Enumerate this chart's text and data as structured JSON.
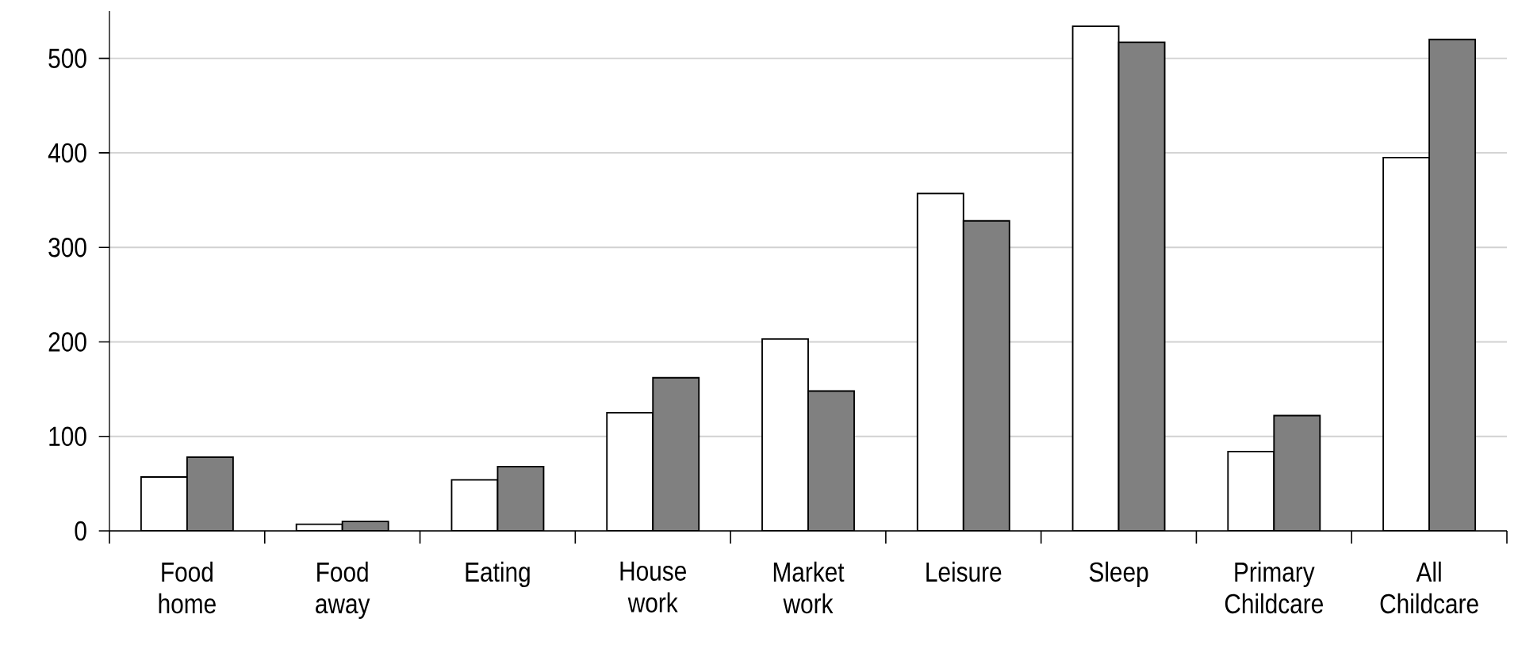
{
  "chart_data": {
    "type": "bar",
    "categories": [
      "Food home",
      "Food away",
      "Eating",
      "House work",
      "Market work",
      "Leisure",
      "Sleep",
      "Primary Childcare",
      "All Childcare"
    ],
    "series": [
      {
        "color": "#ffffff",
        "values": [
          57,
          7,
          54,
          125,
          203,
          357,
          534,
          84,
          395
        ]
      },
      {
        "color": "#808080",
        "values": [
          78,
          10,
          68,
          162,
          148,
          328,
          517,
          122,
          520
        ]
      }
    ],
    "ylim": [
      0,
      550
    ],
    "yticks": [
      0,
      100,
      200,
      300,
      400,
      500
    ],
    "grid": "y"
  }
}
